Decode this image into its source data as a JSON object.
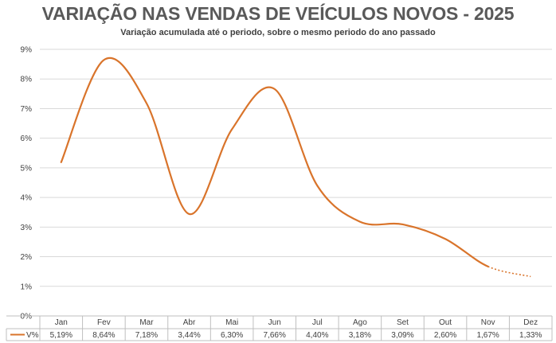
{
  "chart_data": {
    "type": "line",
    "title": "VARIAÇÃO NAS VENDAS DE VEÍCULOS NOVOS - 2025",
    "subtitle": "Variação acumulada até o periodo, sobre o mesmo periodo do ano passado",
    "categories": [
      "Jan",
      "Fev",
      "Mar",
      "Abr",
      "Mai",
      "Jun",
      "Jul",
      "Ago",
      "Set",
      "Out",
      "Nov",
      "Dez"
    ],
    "series": [
      {
        "name": "V%",
        "values": [
          5.19,
          8.64,
          7.18,
          3.44,
          6.3,
          7.66,
          4.4,
          3.18,
          3.09,
          2.6,
          1.67,
          1.33
        ],
        "labels": [
          "5,19%",
          "8,64%",
          "7,18%",
          "3,44%",
          "6,30%",
          "7,66%",
          "4,40%",
          "3,18%",
          "3,09%",
          "2,60%",
          "1,67%",
          "1,33%"
        ],
        "color": "#d9742b",
        "dashed_from_index": 10
      }
    ],
    "y_ticks": [
      "0%",
      "1%",
      "2%",
      "3%",
      "4%",
      "5%",
      "6%",
      "7%",
      "8%",
      "9%"
    ],
    "ylim": [
      0,
      9
    ],
    "grid": true,
    "smooth": true,
    "legend": "data-table"
  }
}
